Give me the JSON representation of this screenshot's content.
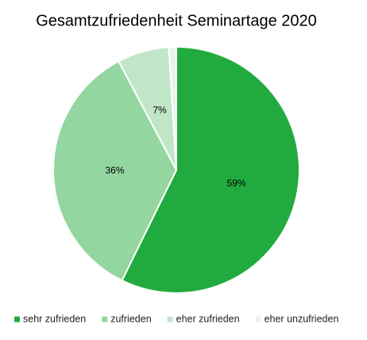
{
  "chart_data": {
    "type": "pie",
    "title": "Gesamtzufriedenheit Seminartage 2020",
    "categories": [
      "sehr zufrieden",
      "zufrieden",
      "eher zufrieden",
      "eher unzufrieden"
    ],
    "values": [
      59,
      36,
      7,
      1
    ],
    "value_labels": [
      "59%",
      "36%",
      "7%",
      null
    ],
    "colors": [
      "#21ab3f",
      "#93d6a0",
      "#c0e6c7",
      "#e6f4e9"
    ],
    "legend": "bottom"
  }
}
